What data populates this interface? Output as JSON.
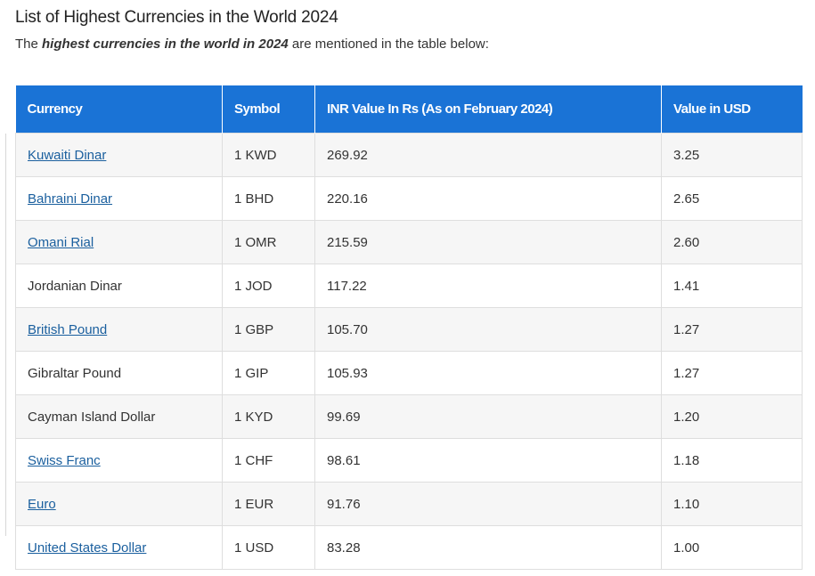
{
  "title": "List of Highest Currencies in the World 2024",
  "intro": {
    "prefix": "The ",
    "emphasis": "highest currencies in the world in 2024",
    "suffix": " are mentioned in the table below:"
  },
  "table": {
    "headers": [
      "Currency",
      "Symbol",
      "INR Value In Rs (As on February 2024)",
      "Value in USD"
    ],
    "rows": [
      {
        "currency": "Kuwaiti Dinar",
        "link": true,
        "symbol": "1 KWD",
        "inr": "269.92",
        "usd": "3.25"
      },
      {
        "currency": "Bahraini Dinar",
        "link": true,
        "symbol": "1 BHD",
        "inr": "220.16",
        "usd": "2.65"
      },
      {
        "currency": " Omani Rial",
        "link": true,
        "symbol": "1 OMR",
        "inr": "215.59",
        "usd": "2.60"
      },
      {
        "currency": "Jordanian Dinar",
        "link": false,
        "symbol": "1 JOD",
        "inr": "117.22",
        "usd": "1.41"
      },
      {
        "currency": "British Pound",
        "link": true,
        "symbol": "1 GBP",
        "inr": "105.70",
        "usd": "1.27"
      },
      {
        "currency": "Gibraltar Pound",
        "link": false,
        "symbol": "1 GIP",
        "inr": "105.93",
        "usd": "1.27"
      },
      {
        "currency": "Cayman Island Dollar",
        "link": false,
        "symbol": "1 KYD",
        "inr": "99.69",
        "usd": "1.20"
      },
      {
        "currency": "Swiss Franc",
        "link": true,
        "symbol": "1 CHF",
        "inr": "98.61",
        "usd": "1.18"
      },
      {
        "currency": "Euro",
        "link": true,
        "symbol": "1 EUR",
        "inr": "91.76",
        "usd": "1.10"
      },
      {
        "currency": "United States Dollar",
        "link": true,
        "symbol": "1 USD",
        "inr": "83.28",
        "usd": "1.00"
      }
    ]
  },
  "colors": {
    "header_bg": "#1a73d6",
    "link": "#1a5f9e",
    "stripe": "#f6f6f6"
  }
}
